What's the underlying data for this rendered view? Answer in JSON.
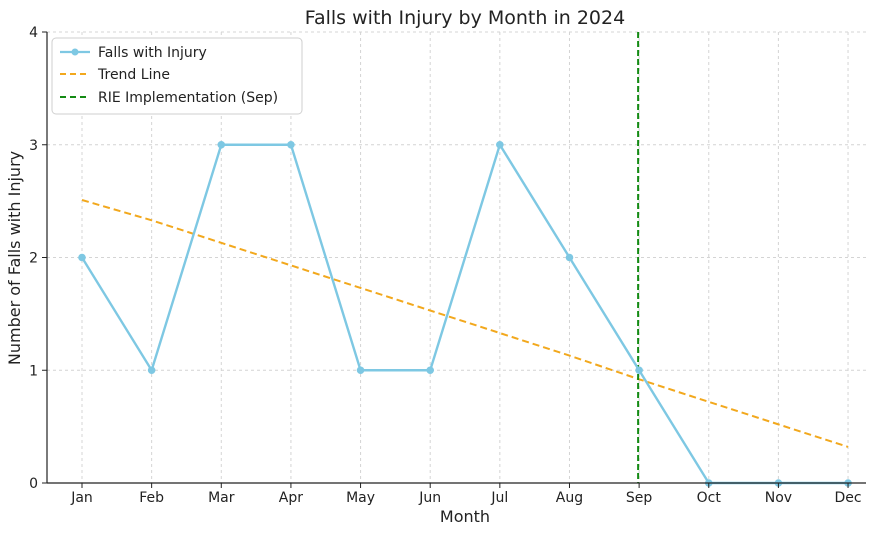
{
  "chart_data": {
    "type": "line",
    "title": "Falls with Injury by Month in 2024",
    "xlabel": "Month",
    "ylabel": "Number of Falls with Injury",
    "categories": [
      "Jan",
      "Feb",
      "Mar",
      "Apr",
      "May",
      "Jun",
      "Jul",
      "Aug",
      "Sep",
      "Oct",
      "Nov",
      "Dec"
    ],
    "ylim": [
      0,
      4
    ],
    "yticks": [
      "0",
      "1",
      "2",
      "3",
      "4"
    ],
    "grid": true,
    "legend_position": "top-left",
    "series": [
      {
        "name": "Falls with Injury",
        "values": [
          2,
          1,
          3,
          3,
          1,
          1,
          3,
          2,
          1,
          0,
          0,
          0
        ],
        "color": "#7ec8e3",
        "style": "solid-markers"
      },
      {
        "name": "Trend Line",
        "values": [
          2.51,
          2.33,
          2.13,
          1.93,
          1.73,
          1.53,
          1.33,
          1.13,
          0.92,
          0.72,
          0.52,
          0.32
        ],
        "color": "#f2a81d",
        "style": "dashed"
      }
    ],
    "vline": {
      "name": "RIE Implementation (Sep)",
      "x": "Sep",
      "color": "#138a13",
      "style": "dashed"
    }
  }
}
